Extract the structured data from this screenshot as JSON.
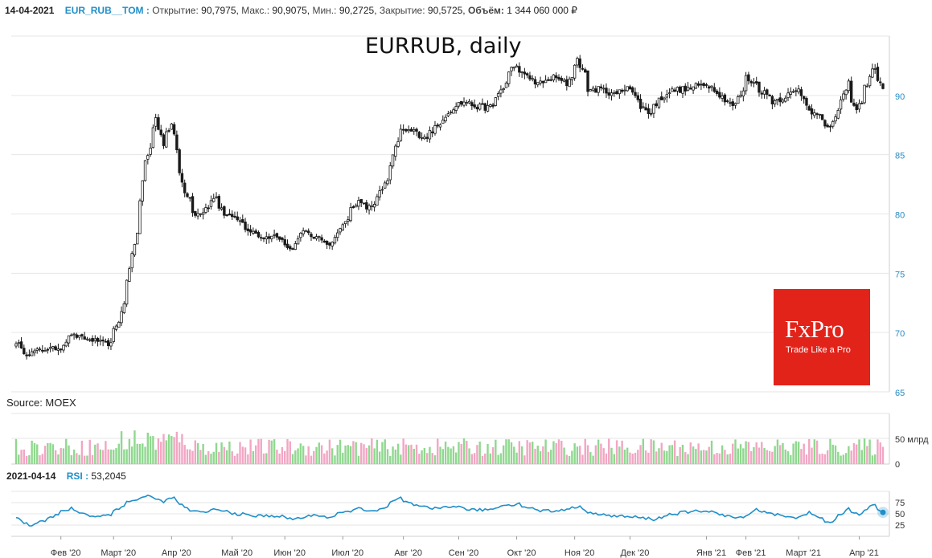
{
  "header": {
    "date": "14-04-2021",
    "ticker": "EUR_RUB__TOM :",
    "open_label": "Открытие:",
    "open_value": "90,7975,",
    "high_label": "Макс.:",
    "high_value": "90,9075,",
    "low_label": "Мин.:",
    "low_value": "90,2725,",
    "close_label": "Закрытие:",
    "close_value": "90,5725,",
    "volume_label": "Объём:",
    "volume_value": "1 344 060 000 ₽"
  },
  "source_text": "Source: MOEX",
  "rsi_header": {
    "date": "2021-04-14",
    "name": "RSI :",
    "value": "53,2045"
  },
  "logo": {
    "brand": "FxPro",
    "tagline": "Trade Like a Pro"
  },
  "colors": {
    "candle": "#1a1a1a",
    "axis_label": "#2a8bc0",
    "volume_up": "#8fd88f",
    "volume_down": "#f2a6c4",
    "rsi_line": "#1f8fc9",
    "logo_bg": "#e2231a",
    "grid": "#e6e6e6"
  },
  "chart_data": [
    {
      "type": "candlestick",
      "title": "EURRUB, daily",
      "ylim": [
        65,
        95
      ],
      "y_ticks": [
        "65",
        "70",
        "75",
        "80",
        "85",
        "90"
      ],
      "x_tick_labels": [
        "Фев '20",
        "Март '20",
        "Апр '20",
        "Май '20",
        "Июн '20",
        "Июл '20",
        "Авг '20",
        "Сен '20",
        "Окт '20",
        "Ноя '20",
        "Дек '20",
        "Янв '21",
        "Фев '21",
        "Март '21",
        "Апр '21"
      ],
      "close_anchors": [
        [
          "2020-01-09",
          69.2
        ],
        [
          "2020-01-15",
          68.2
        ],
        [
          "2020-01-24",
          68.6
        ],
        [
          "2020-02-03",
          68.7
        ],
        [
          "2020-02-07",
          69.9
        ],
        [
          "2020-02-14",
          69.5
        ],
        [
          "2020-02-21",
          69.3
        ],
        [
          "2020-02-28",
          69.0
        ],
        [
          "2020-03-04",
          71.0
        ],
        [
          "2020-03-09",
          74.5
        ],
        [
          "2020-03-12",
          77.5
        ],
        [
          "2020-03-16",
          81.0
        ],
        [
          "2020-03-18",
          84.5
        ],
        [
          "2020-03-20",
          85.5
        ],
        [
          "2020-03-24",
          88.0
        ],
        [
          "2020-03-27",
          86.0
        ],
        [
          "2020-04-01",
          87.5
        ],
        [
          "2020-04-03",
          85.5
        ],
        [
          "2020-04-08",
          82.0
        ],
        [
          "2020-04-14",
          80.0
        ],
        [
          "2020-04-20",
          80.5
        ],
        [
          "2020-04-24",
          81.5
        ],
        [
          "2020-04-29",
          80.0
        ],
        [
          "2020-05-06",
          79.5
        ],
        [
          "2020-05-13",
          78.5
        ],
        [
          "2020-05-20",
          78.0
        ],
        [
          "2020-05-27",
          78.2
        ],
        [
          "2020-06-03",
          77.0
        ],
        [
          "2020-06-10",
          78.5
        ],
        [
          "2020-06-17",
          78.0
        ],
        [
          "2020-06-24",
          77.5
        ],
        [
          "2020-07-01",
          79.0
        ],
        [
          "2020-07-08",
          81.0
        ],
        [
          "2020-07-15",
          80.5
        ],
        [
          "2020-07-22",
          82.0
        ],
        [
          "2020-07-27",
          84.0
        ],
        [
          "2020-07-31",
          87.0
        ],
        [
          "2020-08-07",
          87.0
        ],
        [
          "2020-08-14",
          86.5
        ],
        [
          "2020-08-21",
          87.5
        ],
        [
          "2020-08-28",
          89.0
        ],
        [
          "2020-09-04",
          89.5
        ],
        [
          "2020-09-11",
          89.0
        ],
        [
          "2020-09-18",
          89.0
        ],
        [
          "2020-09-25",
          91.0
        ],
        [
          "2020-09-30",
          92.5
        ],
        [
          "2020-10-07",
          91.5
        ],
        [
          "2020-10-14",
          91.0
        ],
        [
          "2020-10-21",
          91.5
        ],
        [
          "2020-10-28",
          91.0
        ],
        [
          "2020-11-03",
          93.0
        ],
        [
          "2020-11-09",
          90.5
        ],
        [
          "2020-11-16",
          90.5
        ],
        [
          "2020-11-23",
          90.0
        ],
        [
          "2020-11-30",
          91.0
        ],
        [
          "2020-12-04",
          89.5
        ],
        [
          "2020-12-11",
          88.5
        ],
        [
          "2020-12-18",
          90.0
        ],
        [
          "2020-12-25",
          90.5
        ],
        [
          "2020-12-30",
          90.5
        ],
        [
          "2021-01-11",
          91.0
        ],
        [
          "2021-01-18",
          90.0
        ],
        [
          "2021-01-25",
          89.0
        ],
        [
          "2021-02-01",
          91.5
        ],
        [
          "2021-02-08",
          90.5
        ],
        [
          "2021-02-15",
          89.5
        ],
        [
          "2021-02-22",
          90.0
        ],
        [
          "2021-03-01",
          90.5
        ],
        [
          "2021-03-05",
          89.0
        ],
        [
          "2021-03-12",
          88.0
        ],
        [
          "2021-03-17",
          87.2
        ],
        [
          "2021-03-22",
          89.0
        ],
        [
          "2021-03-26",
          91.0
        ],
        [
          "2021-03-31",
          88.8
        ],
        [
          "2021-04-06",
          91.0
        ],
        [
          "2021-04-09",
          92.5
        ],
        [
          "2021-04-14",
          90.5725
        ]
      ]
    },
    {
      "type": "bar",
      "name": "volume",
      "y_tick_labels": [
        "0",
        "50 млрд"
      ],
      "note": "daily turnover bars"
    },
    {
      "type": "line",
      "name": "RSI",
      "ylim": [
        0,
        100
      ],
      "y_ticks": [
        "25",
        "50",
        "75"
      ],
      "last_value": 53.2045,
      "anchors": [
        [
          "2020-01-09",
          45
        ],
        [
          "2020-01-16",
          25
        ],
        [
          "2020-01-27",
          40
        ],
        [
          "2020-02-07",
          62
        ],
        [
          "2020-02-18",
          45
        ],
        [
          "2020-02-28",
          47
        ],
        [
          "2020-03-06",
          70
        ],
        [
          "2020-03-13",
          82
        ],
        [
          "2020-03-19",
          90
        ],
        [
          "2020-03-27",
          78
        ],
        [
          "2020-04-02",
          85
        ],
        [
          "2020-04-10",
          58
        ],
        [
          "2020-04-17",
          52
        ],
        [
          "2020-04-24",
          60
        ],
        [
          "2020-05-06",
          50
        ],
        [
          "2020-05-15",
          45
        ],
        [
          "2020-05-26",
          46
        ],
        [
          "2020-06-05",
          38
        ],
        [
          "2020-06-17",
          48
        ],
        [
          "2020-06-24",
          42
        ],
        [
          "2020-07-01",
          52
        ],
        [
          "2020-07-10",
          62
        ],
        [
          "2020-07-20",
          55
        ],
        [
          "2020-07-31",
          85
        ],
        [
          "2020-08-07",
          70
        ],
        [
          "2020-08-17",
          60
        ],
        [
          "2020-08-28",
          68
        ],
        [
          "2020-09-08",
          58
        ],
        [
          "2020-09-18",
          60
        ],
        [
          "2020-09-25",
          70
        ],
        [
          "2020-10-02",
          72
        ],
        [
          "2020-10-12",
          58
        ],
        [
          "2020-10-22",
          56
        ],
        [
          "2020-11-03",
          66
        ],
        [
          "2020-11-13",
          48
        ],
        [
          "2020-11-24",
          45
        ],
        [
          "2020-12-04",
          42
        ],
        [
          "2020-12-14",
          38
        ],
        [
          "2020-12-23",
          50
        ],
        [
          "2021-01-11",
          58
        ],
        [
          "2021-01-20",
          45
        ],
        [
          "2021-01-29",
          40
        ],
        [
          "2021-02-05",
          60
        ],
        [
          "2021-02-15",
          50
        ],
        [
          "2021-02-25",
          40
        ],
        [
          "2021-03-05",
          52
        ],
        [
          "2021-03-17",
          30
        ],
        [
          "2021-03-26",
          60
        ],
        [
          "2021-04-01",
          50
        ],
        [
          "2021-04-09",
          70
        ],
        [
          "2021-04-14",
          53.2045
        ]
      ]
    }
  ]
}
